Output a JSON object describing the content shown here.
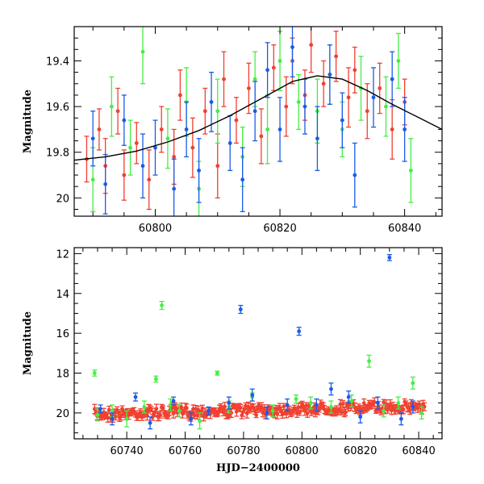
{
  "chart_data": [
    {
      "type": "scatter",
      "panel": "top",
      "xlabel": "",
      "ylabel": "Magnitude",
      "xlim": [
        60787,
        60846
      ],
      "ylim": [
        20.08,
        19.25
      ],
      "y_inverted": true,
      "xticks": [
        60800,
        60820,
        60840
      ],
      "yticks": [
        19.4,
        19.6,
        19.8,
        20
      ],
      "ytick_labels": [
        "19.4",
        "19.6",
        "19.8",
        "20"
      ],
      "series_colors": {
        "green": "#44ee44",
        "red": "#f04030",
        "blue": "#1a5ce8"
      },
      "model_curve": {
        "color": "#000000",
        "x": [
          60787,
          60792,
          60797,
          60802,
          60807,
          60812,
          60817,
          60822,
          60826,
          60830,
          60834,
          60838,
          60842,
          60846
        ],
        "y": [
          19.835,
          19.82,
          19.795,
          19.755,
          19.705,
          19.64,
          19.565,
          19.49,
          19.465,
          19.48,
          19.53,
          19.59,
          19.645,
          19.7
        ]
      },
      "series": [
        {
          "color": "red",
          "points": [
            [
              60789,
              19.83,
              0.1
            ],
            [
              60791,
              19.7,
              0.09
            ],
            [
              60792,
              19.86,
              0.12
            ],
            [
              60794,
              19.62,
              0.1
            ],
            [
              60795,
              19.9,
              0.11
            ],
            [
              60797,
              19.76,
              0.09
            ],
            [
              60799,
              19.92,
              0.13
            ],
            [
              60801,
              19.7,
              0.1
            ],
            [
              60803,
              19.82,
              0.12
            ],
            [
              60804,
              19.55,
              0.11
            ],
            [
              60806,
              19.78,
              0.13
            ],
            [
              60808,
              19.62,
              0.1
            ],
            [
              60810,
              19.86,
              0.14
            ],
            [
              60811,
              19.48,
              0.12
            ],
            [
              60813,
              19.66,
              0.1
            ],
            [
              60815,
              19.52,
              0.11
            ],
            [
              60817,
              19.73,
              0.12
            ],
            [
              60819,
              19.43,
              0.1
            ],
            [
              60821,
              19.6,
              0.13
            ],
            [
              60822,
              19.4,
              0.1
            ],
            [
              60824,
              19.55,
              0.11
            ],
            [
              60825,
              19.33,
              0.12
            ],
            [
              60827,
              19.5,
              0.1
            ],
            [
              60829,
              19.38,
              0.11
            ],
            [
              60831,
              19.56,
              0.13
            ],
            [
              60832,
              19.44,
              0.1
            ],
            [
              60834,
              19.62,
              0.12
            ],
            [
              60836,
              19.52,
              0.11
            ],
            [
              60838,
              19.7,
              0.13
            ],
            [
              60840,
              19.58,
              0.1
            ]
          ]
        },
        {
          "color": "green",
          "points": [
            [
              60790,
              19.92,
              0.14
            ],
            [
              60793,
              19.6,
              0.13
            ],
            [
              60796,
              19.78,
              0.12
            ],
            [
              60798,
              19.36,
              0.14
            ],
            [
              60802,
              19.74,
              0.13
            ],
            [
              60805,
              19.58,
              0.15
            ],
            [
              60807,
              19.96,
              0.12
            ],
            [
              60810,
              19.62,
              0.14
            ],
            [
              60814,
              19.82,
              0.13
            ],
            [
              60816,
              19.48,
              0.12
            ],
            [
              60818,
              19.7,
              0.15
            ],
            [
              60820,
              19.4,
              0.13
            ],
            [
              60823,
              19.58,
              0.12
            ],
            [
              60826,
              19.62,
              0.14
            ],
            [
              60828,
              19.46,
              0.13
            ],
            [
              60830,
              19.7,
              0.12
            ],
            [
              60833,
              19.52,
              0.14
            ],
            [
              60837,
              19.6,
              0.13
            ],
            [
              60839,
              19.4,
              0.12
            ],
            [
              60841,
              19.88,
              0.14
            ]
          ]
        },
        {
          "color": "blue",
          "points": [
            [
              60790,
              19.74,
              0.12
            ],
            [
              60792,
              19.94,
              0.13
            ],
            [
              60795,
              19.66,
              0.11
            ],
            [
              60798,
              19.86,
              0.14
            ],
            [
              60800,
              19.78,
              0.12
            ],
            [
              60803,
              19.96,
              0.13
            ],
            [
              60805,
              19.7,
              0.12
            ],
            [
              60807,
              19.88,
              0.14
            ],
            [
              60809,
              19.58,
              0.13
            ],
            [
              60812,
              19.76,
              0.12
            ],
            [
              60814,
              19.92,
              0.14
            ],
            [
              60816,
              19.62,
              0.13
            ],
            [
              60818,
              19.44,
              0.12
            ],
            [
              60820,
              19.7,
              0.14
            ],
            [
              60822,
              19.34,
              0.13
            ],
            [
              60824,
              19.6,
              0.12
            ],
            [
              60826,
              19.74,
              0.14
            ],
            [
              60828,
              19.46,
              0.13
            ],
            [
              60830,
              19.66,
              0.12
            ],
            [
              60832,
              19.9,
              0.14
            ],
            [
              60835,
              19.56,
              0.13
            ],
            [
              60838,
              19.48,
              0.12
            ],
            [
              60840,
              19.7,
              0.14
            ]
          ]
        }
      ]
    },
    {
      "type": "scatter",
      "panel": "bottom",
      "xlabel": "HJD−2400000",
      "ylabel": "Magnitude",
      "xlim": [
        60722,
        60848
      ],
      "ylim": [
        21.3,
        11.7
      ],
      "y_inverted": true,
      "xticks": [
        60740,
        60760,
        60780,
        60800,
        60820,
        60840
      ],
      "yticks": [
        12,
        14,
        16,
        18,
        20
      ],
      "ytick_labels": [
        "12",
        "14",
        "16",
        "18",
        "20"
      ],
      "series_colors": {
        "green": "#44ee44",
        "red": "#f04030",
        "blue": "#1a5ce8"
      },
      "series": [
        {
          "color": "green",
          "points": [
            [
              60729,
              18.0,
              0.15
            ],
            [
              60730,
              20.1,
              0.3
            ],
            [
              60735,
              19.9,
              0.3
            ],
            [
              60740,
              20.3,
              0.4
            ],
            [
              60746,
              19.7,
              0.3
            ],
            [
              60750,
              18.3,
              0.15
            ],
            [
              60752,
              14.6,
              0.2
            ],
            [
              60755,
              19.6,
              0.3
            ],
            [
              60758,
              19.9,
              0.3
            ],
            [
              60765,
              20.4,
              0.4
            ],
            [
              60771,
              18.0,
              0.1
            ],
            [
              60775,
              19.7,
              0.3
            ],
            [
              60783,
              19.2,
              0.2
            ],
            [
              60790,
              19.9,
              0.3
            ],
            [
              60798,
              19.3,
              0.2
            ],
            [
              60803,
              19.5,
              0.3
            ],
            [
              60810,
              19.7,
              0.3
            ],
            [
              60817,
              19.4,
              0.3
            ],
            [
              60823,
              17.4,
              0.3
            ],
            [
              60828,
              19.9,
              0.3
            ],
            [
              60833,
              19.5,
              0.3
            ],
            [
              60838,
              18.5,
              0.3
            ],
            [
              60841,
              20.0,
              0.3
            ]
          ]
        },
        {
          "color": "blue",
          "points": [
            [
              60731,
              19.8,
              0.2
            ],
            [
              60735,
              20.3,
              0.3
            ],
            [
              60743,
              19.2,
              0.2
            ],
            [
              60748,
              20.5,
              0.3
            ],
            [
              60756,
              19.4,
              0.2
            ],
            [
              60762,
              20.3,
              0.3
            ],
            [
              60768,
              19.9,
              0.2
            ],
            [
              60775,
              19.5,
              0.3
            ],
            [
              60779,
              14.8,
              0.2
            ],
            [
              60783,
              19.1,
              0.3
            ],
            [
              60788,
              20.0,
              0.3
            ],
            [
              60795,
              19.6,
              0.3
            ],
            [
              60799,
              15.9,
              0.2
            ],
            [
              60805,
              19.6,
              0.3
            ],
            [
              60810,
              18.8,
              0.3
            ],
            [
              60816,
              19.2,
              0.3
            ],
            [
              60820,
              20.2,
              0.3
            ],
            [
              60826,
              19.5,
              0.3
            ],
            [
              60830,
              12.2,
              0.15
            ],
            [
              60834,
              20.3,
              0.3
            ],
            [
              60838,
              19.7,
              0.3
            ]
          ]
        }
      ],
      "dense_band": {
        "color": "red",
        "x_range": [
          60729,
          60842
        ],
        "y_start": 20.05,
        "y_end": 19.65
      }
    }
  ]
}
